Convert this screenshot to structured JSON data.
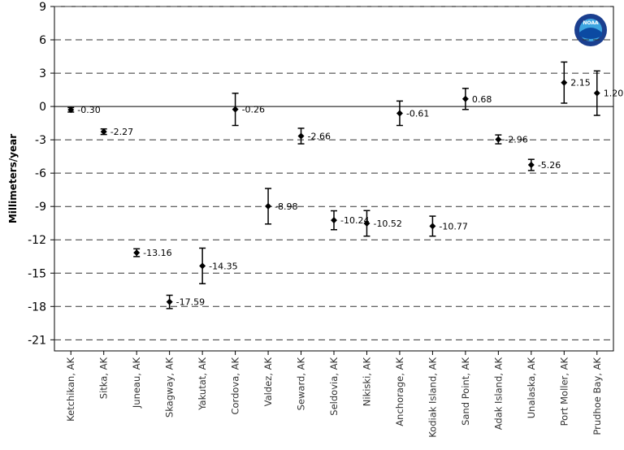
{
  "chart_data": {
    "type": "errorbar",
    "ylabel": "Millimeters/year",
    "logo_text": "NOAA",
    "categories": [
      "Ketchikan, AK",
      "Sitka, AK",
      "Juneau, AK",
      "Skagway, AK",
      "Yakutat, AK",
      "Cordova, AK",
      "Valdez, AK",
      "Seward, AK",
      "Seldovia, AK",
      "Nikiski, AK",
      "Anchorage, AK",
      "Kodiak Island, AK",
      "Sand Point, AK",
      "Adak Island, AK",
      "Unalaska, AK",
      "Port Moller, AK",
      "Prudhoe Bay, AK"
    ],
    "values": [
      -0.3,
      -2.27,
      -13.16,
      -17.59,
      -14.35,
      -0.26,
      -8.98,
      -2.66,
      -10.24,
      -10.52,
      -0.61,
      -10.77,
      0.68,
      -2.96,
      -5.26,
      2.15,
      1.2
    ],
    "value_labels": [
      "-0.30",
      "-2.27",
      "-13.16",
      "-17.59",
      "-14.35",
      "-0.26",
      "-8.98",
      "-2.66",
      "-10.24",
      "-10.52",
      "-0.61",
      "-10.77",
      "0.68",
      "-2.96",
      "-5.26",
      "2.15",
      "1.20"
    ],
    "errors": [
      0.2,
      0.25,
      0.35,
      0.6,
      1.6,
      1.45,
      1.6,
      0.7,
      0.85,
      1.15,
      1.1,
      0.9,
      0.95,
      0.4,
      0.5,
      1.85,
      2.0
    ],
    "color": "#000000",
    "ylim": [
      -22,
      9
    ],
    "yticks": [
      9,
      6,
      3,
      0,
      -3,
      -6,
      -9,
      -12,
      -15,
      -18,
      -21
    ],
    "grid": true
  }
}
